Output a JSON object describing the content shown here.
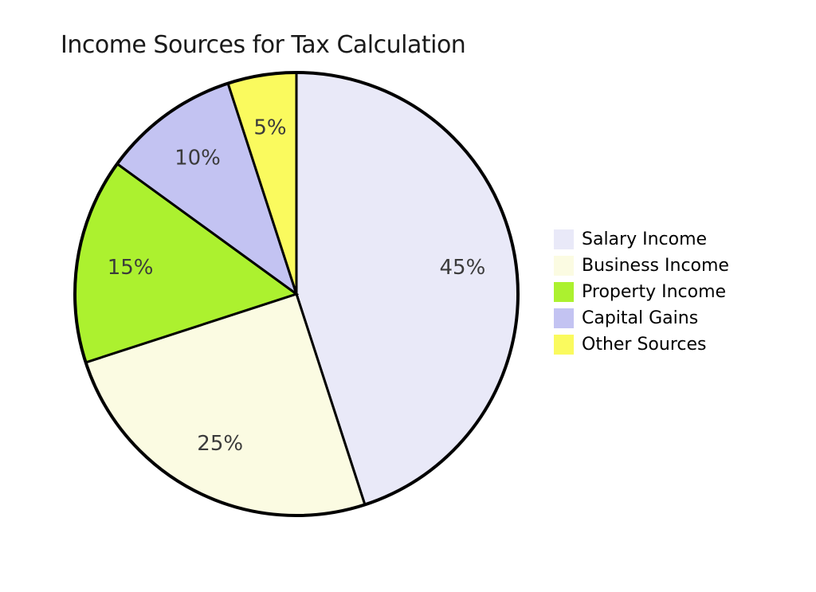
{
  "title": "Income Sources for Tax Calculation",
  "colors": {
    "background": "#ffffff",
    "wedge_edge": "#000000",
    "slice_label_text": "#3b3b3b",
    "title_text": "#1a1a1a",
    "legend_text": "#000000"
  },
  "chart_data": {
    "type": "pie",
    "title": "Income Sources for Tax Calculation",
    "categories": [
      "Salary Income",
      "Business Income",
      "Property Income",
      "Capital Gains",
      "Other Sources"
    ],
    "values": [
      45,
      25,
      15,
      10,
      5
    ],
    "unit": "%",
    "slice_labels": [
      "45%",
      "25%",
      "15%",
      "10%",
      "5%"
    ],
    "slice_colors": [
      "#e9e9f8",
      "#fbfbe2",
      "#acf12f",
      "#c3c3f2",
      "#fafa5e"
    ],
    "start_angle": "12-o-clock",
    "direction": "clockwise",
    "legend_position": "right",
    "grid": "off"
  }
}
